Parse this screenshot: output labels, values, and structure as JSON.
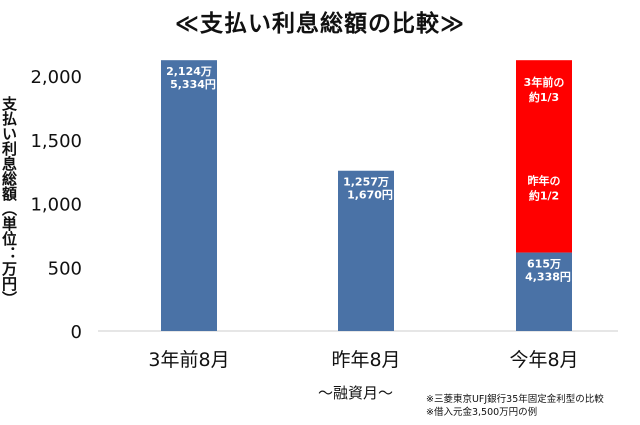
{
  "title": "≪支払い利息総額の比較≫",
  "ylabel": "支払い利息総額（単位：万円）",
  "xsublabel": "～融資月～",
  "notes": [
    "※三菱東京UFJ銀行35年固定金利型の比較",
    "※借入元金3,500万円の例"
  ],
  "colors": {
    "blue": "#4a72a6",
    "red": "#ff0000",
    "gridline": "#cccccc"
  },
  "chart_data": {
    "type": "bar",
    "categories": [
      "3年前8月",
      "昨年8月",
      "今年8月"
    ],
    "values": [
      2124,
      1257,
      615
    ],
    "ylim": [
      0,
      2000
    ],
    "yticks": [
      "0",
      "500",
      "1,000",
      "1,500",
      "2,000"
    ],
    "ytick_values": [
      0,
      500,
      1000,
      1500,
      2000
    ],
    "bar_labels": [
      [
        "2,124万",
        "5,334円"
      ],
      [
        "1,257万",
        "1,670円"
      ],
      [
        "615万",
        "4,338円"
      ]
    ],
    "comparison_bar": {
      "category": "今年8月",
      "reference_value": 2124,
      "labels": [
        [
          "3年前の",
          "約1/3"
        ],
        [
          "昨年の",
          "約1/2"
        ]
      ]
    }
  }
}
